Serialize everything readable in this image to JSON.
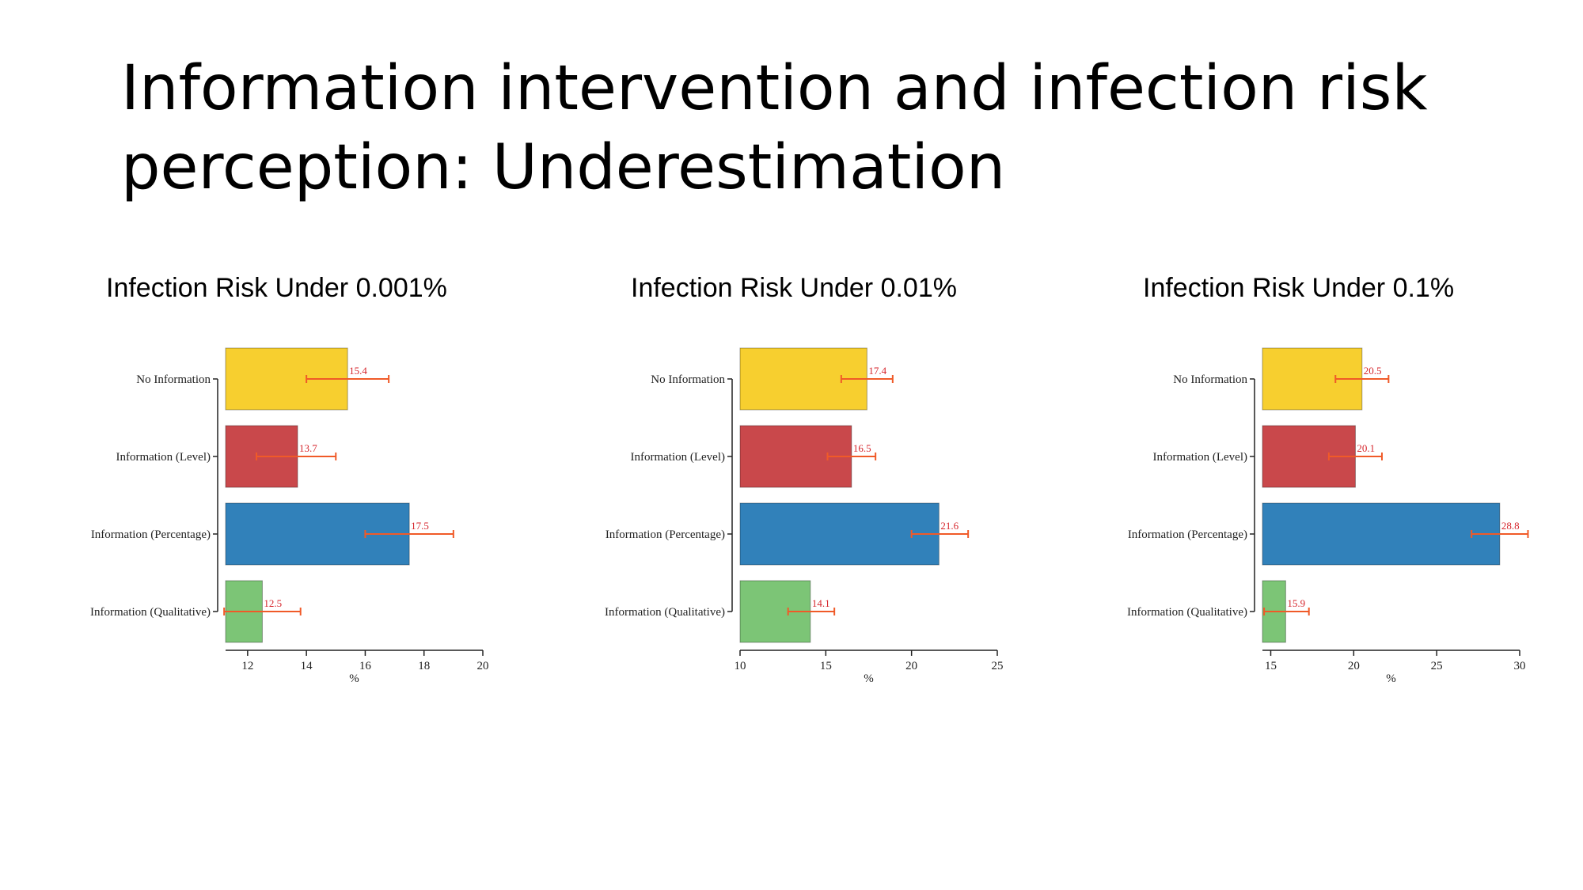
{
  "slide": {
    "title_line1": "Information intervention and infection risk",
    "title_line2": "perception: Underestimation"
  },
  "colors": {
    "no_information": "#F7CF2F",
    "level": "#C9484B",
    "percentage": "#3181BA",
    "qualitative": "#7CC576",
    "error_bar": "#F05A28",
    "value_label": "#D6262C"
  },
  "chart_data": [
    {
      "type": "bar",
      "orientation": "horizontal",
      "title": "Infection Risk Under 0.001%",
      "categories": [
        "No Information",
        "Information (Level)",
        "Information (Percentage)",
        "Information (Qualitative)"
      ],
      "values": [
        15.4,
        13.7,
        17.5,
        12.5
      ],
      "error_low": [
        14.0,
        12.3,
        16.0,
        11.2
      ],
      "error_high": [
        16.8,
        15.0,
        19.0,
        13.8
      ],
      "value_labels": [
        "15.4",
        "13.7",
        "17.5",
        "12.5"
      ],
      "xlabel": "%",
      "xlim": [
        11.25,
        20
      ],
      "xticks": [
        12,
        14,
        16,
        18,
        20
      ],
      "xtick_labels": [
        "12",
        "14",
        "16",
        "18",
        "20"
      ]
    },
    {
      "type": "bar",
      "orientation": "horizontal",
      "title": "Infection Risk Under 0.01%",
      "categories": [
        "No Information",
        "Information (Level)",
        "Information (Percentage)",
        "Information (Qualitative)"
      ],
      "values": [
        17.4,
        16.5,
        21.6,
        14.1
      ],
      "error_low": [
        15.9,
        15.1,
        20.0,
        12.8
      ],
      "error_high": [
        18.9,
        17.9,
        23.3,
        15.5
      ],
      "value_labels": [
        "17.4",
        "16.5",
        "21.6",
        "14.1"
      ],
      "xlabel": "%",
      "xlim": [
        10,
        25
      ],
      "xticks": [
        10,
        15,
        20,
        25
      ],
      "xtick_labels": [
        "10",
        "15",
        "20",
        "25"
      ]
    },
    {
      "type": "bar",
      "orientation": "horizontal",
      "title": "Infection Risk Under 0.1%",
      "categories": [
        "No Information",
        "Information (Level)",
        "Information (Percentage)",
        "Information (Qualitative)"
      ],
      "values": [
        20.5,
        20.1,
        28.8,
        15.9
      ],
      "error_low": [
        18.9,
        18.5,
        27.1,
        14.6
      ],
      "error_high": [
        22.1,
        21.7,
        30.5,
        17.3
      ],
      "value_labels": [
        "20.5",
        "20.1",
        "28.8",
        "15.9"
      ],
      "xlabel": "%",
      "xlim": [
        14.5,
        30
      ],
      "xticks": [
        15,
        20,
        25,
        30
      ],
      "xtick_labels": [
        "15",
        "20",
        "25",
        "30"
      ]
    }
  ]
}
